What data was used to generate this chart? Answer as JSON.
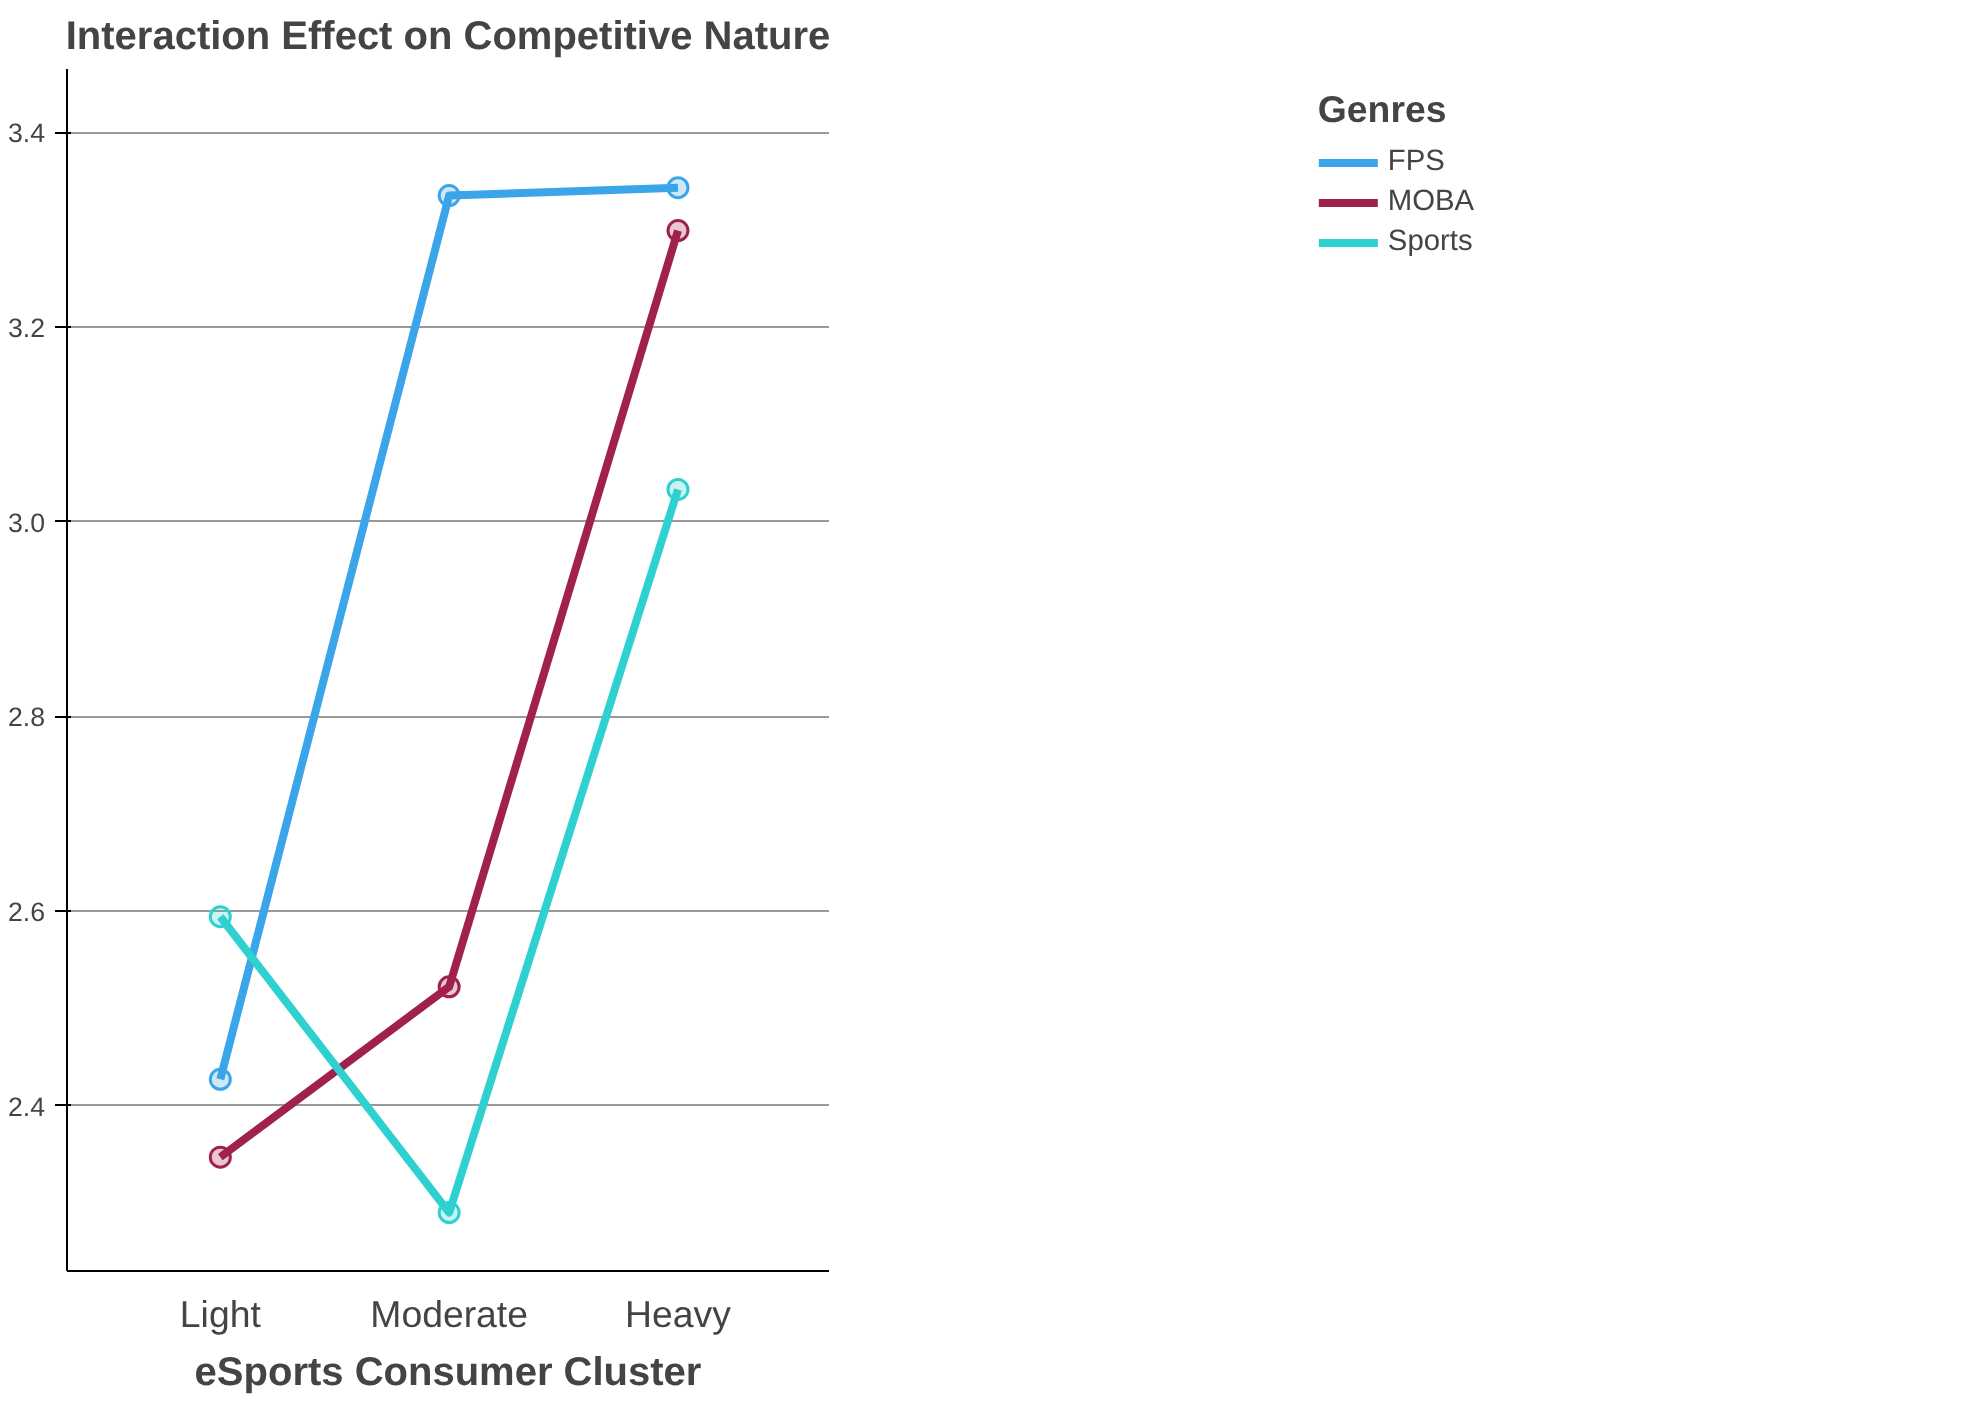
{
  "chart_data": {
    "type": "line",
    "title": "Interaction Effect on Competitive Nature",
    "xlabel": "eSports Consumer Cluster",
    "legend_title": "Genres",
    "categories": [
      "Light",
      "Moderate",
      "Heavy"
    ],
    "series": [
      {
        "name": "FPS",
        "color": "#3aa5e8",
        "values": [
          2.427,
          3.335,
          3.343
        ]
      },
      {
        "name": "MOBA",
        "color": "#a0204e",
        "values": [
          2.347,
          2.522,
          3.299
        ]
      },
      {
        "name": "Sports",
        "color": "#2ed0d0",
        "values": [
          2.594,
          2.29,
          3.033
        ]
      }
    ],
    "ylim": [
      2.23,
      3.465
    ],
    "yticks": [
      {
        "value": 2.4,
        "label": "2.4"
      },
      {
        "value": 2.6,
        "label": "2.6"
      },
      {
        "value": 2.8,
        "label": "2.8"
      },
      {
        "value": 3.0,
        "label": "3.0"
      },
      {
        "value": 3.2,
        "label": "3.2"
      },
      {
        "value": 3.4,
        "label": "3.4"
      }
    ],
    "grid": "y",
    "legend": "top right",
    "marker": "circle",
    "line_style": "solid"
  }
}
